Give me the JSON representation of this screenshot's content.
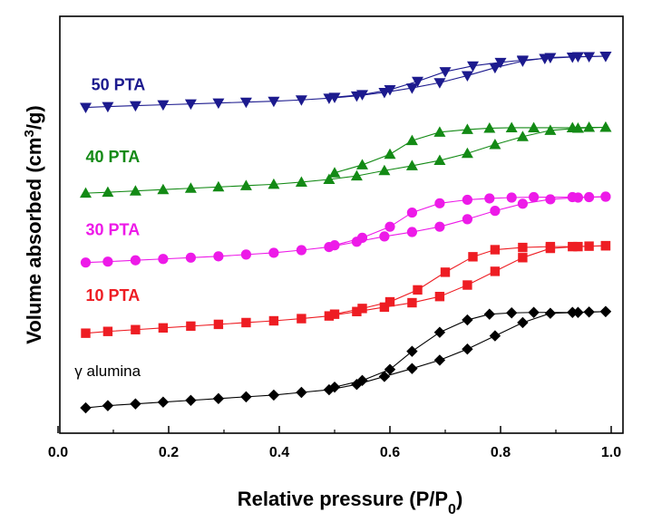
{
  "chart_data": {
    "type": "line",
    "title": "",
    "xlabel": "Relative pressure (P/P",
    "xlabel_sub": "0",
    "xlabel_end": ")",
    "ylabel": "Volume absorbed (cm",
    "ylabel_sup": "3",
    "ylabel_end": "/g)",
    "xlim": [
      0.0,
      1.0
    ],
    "ylim": [
      0,
      100
    ],
    "x_ticks": [
      0.0,
      0.2,
      0.4,
      0.6,
      0.8,
      1.0
    ],
    "x_tick_labels": [
      "0.0",
      "0.2",
      "0.4",
      "0.6",
      "0.8",
      "1.0"
    ],
    "y_ticks_shown": false,
    "legend": "inline-left",
    "series": [
      {
        "name": "γ alumina",
        "label_pos": [
          0.03,
          7.6
        ],
        "color": "#000000",
        "marker": "diamond",
        "x": [
          0.05,
          0.09,
          0.14,
          0.19,
          0.24,
          0.29,
          0.34,
          0.39,
          0.44,
          0.49,
          0.54,
          0.59,
          0.64,
          0.69,
          0.74,
          0.79,
          0.84,
          0.89,
          0.94,
          0.99
        ],
        "adsorption": [
          0.4,
          0.9,
          1.3,
          1.7,
          2.1,
          2.5,
          2.9,
          3.3,
          3.9,
          4.5,
          5.7,
          7.5,
          9.3,
          11.2,
          13.7,
          16.7,
          19.7,
          21.8,
          22.0,
          22.2
        ],
        "desorption_x": [
          0.99,
          0.96,
          0.93,
          0.86,
          0.82,
          0.78,
          0.74,
          0.69,
          0.64,
          0.6,
          0.55,
          0.5
        ],
        "desorption": [
          22.2,
          22.1,
          22.0,
          22.0,
          21.9,
          21.6,
          20.3,
          17.5,
          13.2,
          9.1,
          6.6,
          5.1
        ]
      },
      {
        "name": "10 PTA",
        "label_pos": [
          0.05,
          24.6
        ],
        "color": "#ee1d23",
        "marker": "square",
        "x": [
          0.05,
          0.09,
          0.14,
          0.19,
          0.24,
          0.29,
          0.34,
          0.39,
          0.44,
          0.49,
          0.54,
          0.59,
          0.64,
          0.69,
          0.74,
          0.79,
          0.84,
          0.89,
          0.94,
          0.99
        ],
        "adsorption": [
          17.3,
          17.7,
          18.1,
          18.5,
          18.9,
          19.3,
          19.7,
          20.1,
          20.6,
          21.2,
          22.2,
          23.2,
          24.2,
          25.6,
          28.2,
          31.3,
          34.4,
          36.5,
          36.9,
          37.1
        ],
        "desorption_x": [
          0.99,
          0.96,
          0.93,
          0.89,
          0.84,
          0.79,
          0.75,
          0.7,
          0.65,
          0.6,
          0.55,
          0.5
        ],
        "desorption": [
          37.1,
          37.0,
          36.9,
          36.9,
          36.7,
          36.2,
          34.6,
          31.1,
          27.1,
          24.4,
          22.9,
          21.6
        ]
      },
      {
        "name": "30 PTA",
        "label_pos": [
          0.05,
          39.5
        ],
        "color": "#ed1ae8",
        "marker": "circle",
        "x": [
          0.05,
          0.09,
          0.14,
          0.19,
          0.24,
          0.29,
          0.34,
          0.39,
          0.44,
          0.49,
          0.54,
          0.59,
          0.64,
          0.69,
          0.74,
          0.79,
          0.84,
          0.89,
          0.94,
          0.99
        ],
        "adsorption": [
          33.3,
          33.5,
          33.8,
          34.1,
          34.4,
          34.7,
          35.1,
          35.5,
          36.1,
          36.8,
          38.0,
          39.2,
          40.2,
          41.4,
          43.1,
          45.0,
          46.6,
          47.6,
          48.0,
          48.2
        ],
        "desorption_x": [
          0.99,
          0.96,
          0.93,
          0.86,
          0.82,
          0.78,
          0.74,
          0.69,
          0.64,
          0.6,
          0.55,
          0.5
        ],
        "desorption": [
          48.2,
          48.1,
          48.1,
          48.1,
          48.0,
          47.8,
          47.5,
          46.7,
          44.6,
          41.4,
          38.9,
          37.2
        ]
      },
      {
        "name": "40 PTA",
        "label_pos": [
          0.05,
          56.0
        ],
        "color": "#138a15",
        "marker": "triangle-up",
        "x": [
          0.05,
          0.09,
          0.14,
          0.19,
          0.24,
          0.29,
          0.34,
          0.39,
          0.44,
          0.49,
          0.54,
          0.59,
          0.64,
          0.69,
          0.74,
          0.79,
          0.84,
          0.89,
          0.94,
          0.99
        ],
        "adsorption": [
          49.0,
          49.2,
          49.5,
          49.8,
          50.1,
          50.4,
          50.7,
          51.0,
          51.5,
          52.1,
          52.9,
          54.1,
          55.2,
          56.4,
          58.0,
          60.0,
          61.8,
          63.2,
          63.7,
          63.9
        ],
        "desorption_x": [
          0.99,
          0.96,
          0.93,
          0.86,
          0.82,
          0.78,
          0.74,
          0.69,
          0.64,
          0.6,
          0.55,
          0.5
        ],
        "desorption": [
          63.9,
          63.9,
          63.8,
          63.8,
          63.8,
          63.7,
          63.4,
          62.8,
          60.9,
          57.8,
          55.4,
          53.6
        ]
      },
      {
        "name": "50 PTA",
        "label_pos": [
          0.06,
          72.3
        ],
        "color": "#1c1a8e",
        "marker": "triangle-down",
        "x": [
          0.05,
          0.09,
          0.14,
          0.19,
          0.24,
          0.29,
          0.34,
          0.39,
          0.44,
          0.49,
          0.54,
          0.59,
          0.64,
          0.69,
          0.74,
          0.79,
          0.84,
          0.89,
          0.94,
          0.99
        ],
        "adsorption": [
          68.4,
          68.6,
          68.8,
          69.0,
          69.2,
          69.4,
          69.6,
          69.8,
          70.1,
          70.5,
          71.0,
          71.8,
          72.8,
          74.0,
          75.6,
          77.4,
          78.9,
          79.7,
          79.9,
          80.0
        ],
        "desorption_x": [
          0.99,
          0.96,
          0.93,
          0.88,
          0.84,
          0.8,
          0.75,
          0.7,
          0.65,
          0.6,
          0.55,
          0.5
        ],
        "desorption": [
          80.0,
          79.9,
          79.8,
          79.5,
          79.1,
          78.6,
          77.8,
          76.5,
          74.3,
          72.4,
          71.3,
          70.7
        ]
      }
    ]
  }
}
